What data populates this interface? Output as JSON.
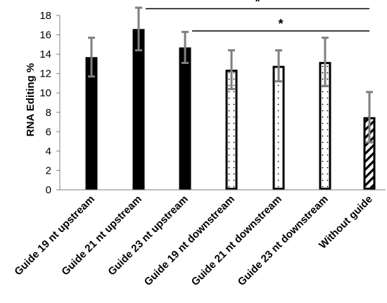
{
  "chart_data": {
    "type": "bar",
    "ylabel": "RNA Editing %",
    "ylim": [
      0,
      18
    ],
    "yticks": [
      0,
      2,
      4,
      6,
      8,
      10,
      12,
      14,
      16,
      18
    ],
    "categories": [
      "Guide 19 nt upstream",
      "Guide 21 nt upstream",
      "Guide 23 nt upstream",
      "Guide 19 nt downstream",
      "Guide 21 nt downstream",
      "Guide 23 nt downstream",
      "Without guide"
    ],
    "values": [
      13.7,
      16.6,
      14.7,
      12.4,
      12.8,
      13.2,
      7.5
    ],
    "errors": [
      2.0,
      2.2,
      1.6,
      2.0,
      1.6,
      2.5,
      2.6
    ],
    "fills": [
      "solid",
      "solid",
      "solid",
      "dotted",
      "dotted",
      "dotted",
      "hatched"
    ],
    "significance": [
      {
        "from": "Guide 21 nt upstream",
        "to": "Without guide",
        "label": "*",
        "level": 18.7
      },
      {
        "from": "Guide 23 nt upstream",
        "to": "Without guide",
        "label": "*",
        "level": 16.4
      }
    ],
    "grid": false,
    "colors": {
      "bar": "#000000",
      "errorbar": "#7f7f7f",
      "axis": "#808080"
    }
  }
}
